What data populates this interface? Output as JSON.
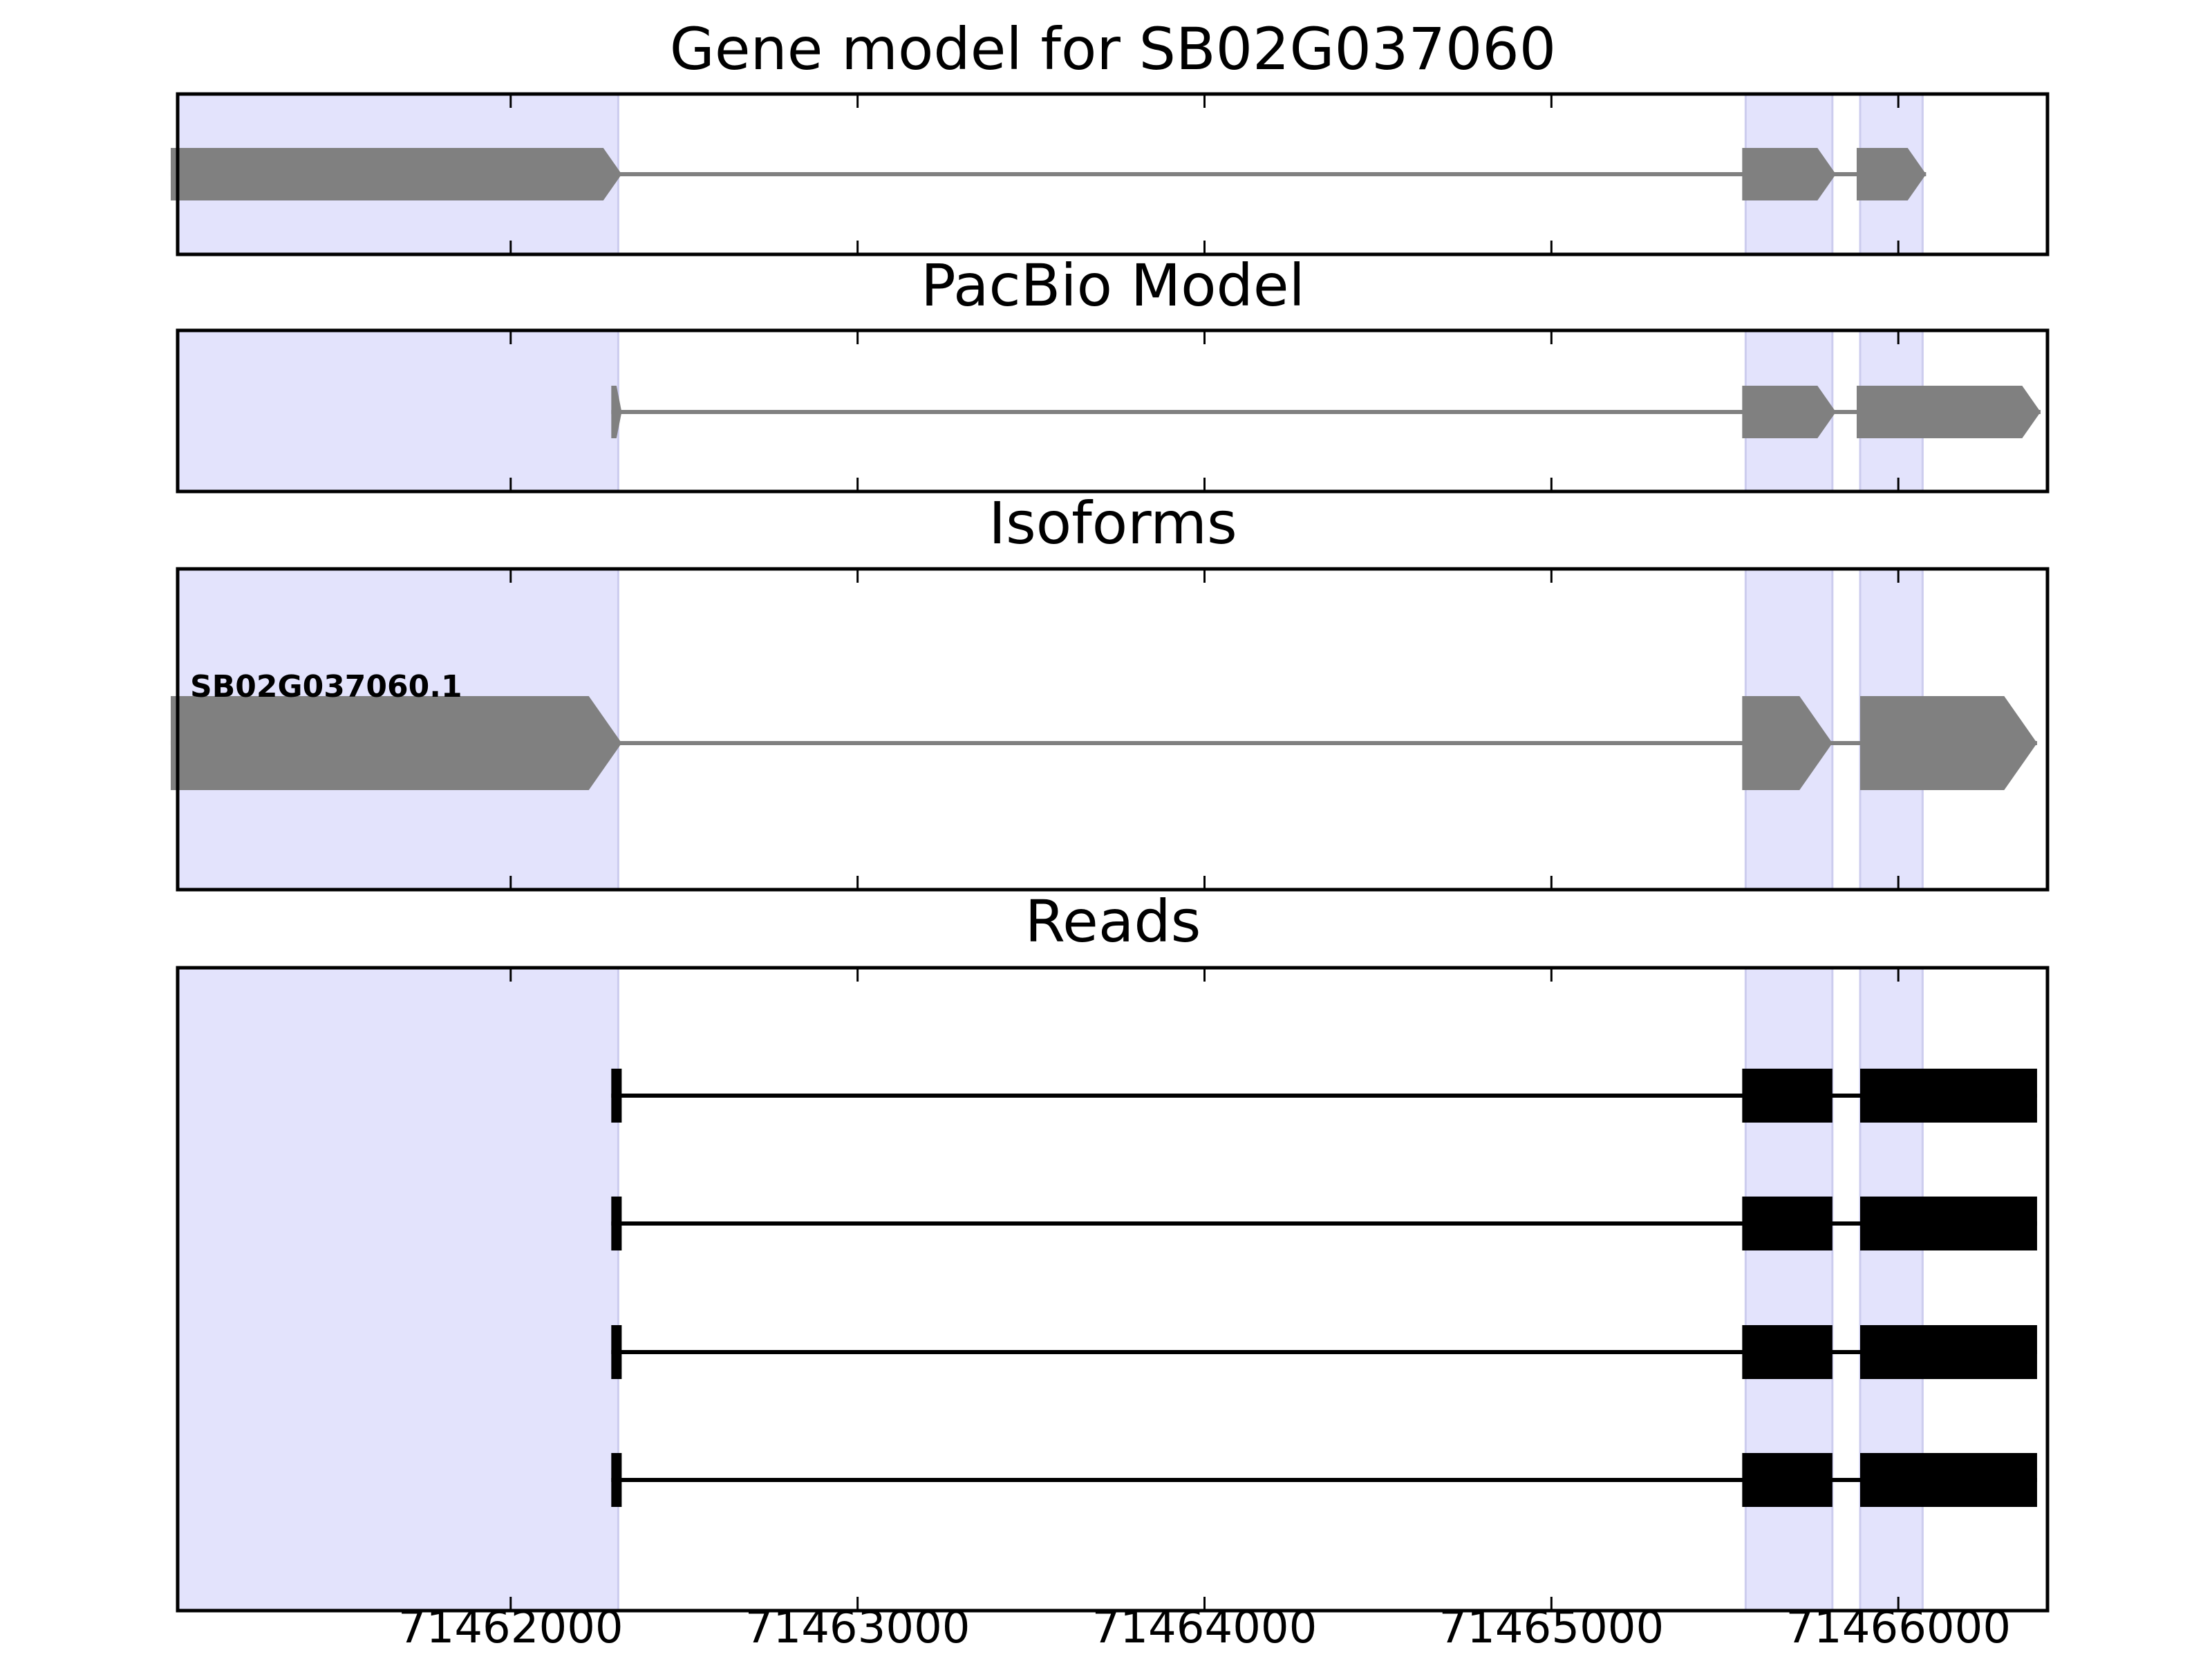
{
  "chart_data": {
    "type": "gene_structure",
    "xlim": [
      71461040,
      71466430
    ],
    "x_ticks": [
      71462000,
      71463000,
      71464000,
      71465000,
      71466000
    ],
    "tick_labels": [
      "71462000",
      "71463000",
      "71464000",
      "71465000",
      "71466000"
    ],
    "highlight_regions": [
      [
        71461040,
        71462310
      ],
      [
        71465560,
        71465810
      ],
      [
        71465890,
        71466070
      ]
    ],
    "colors": {
      "highlight": "#e3e3fc",
      "highlight_edge": "#ccccee",
      "model": "#808080",
      "read": "#000000"
    },
    "panels": [
      {
        "title": "Gene model for SB02G037060",
        "kind": "model",
        "tracks": [
          {
            "label": "",
            "exons": [
              [
                71461020,
                71462320
              ],
              [
                71465550,
                71465820
              ],
              [
                71465880,
                71466080
              ]
            ],
            "strand": "+"
          }
        ]
      },
      {
        "title": "PacBio Model",
        "kind": "model",
        "tracks": [
          {
            "label": "",
            "exons": [
              [
                71462290,
                71462320
              ],
              [
                71465550,
                71465820
              ],
              [
                71465880,
                71466410
              ]
            ],
            "strand": "+"
          }
        ]
      },
      {
        "title": "Isoforms",
        "kind": "model",
        "tracks": [
          {
            "label": "SB02G037060.1",
            "exons": [
              [
                71461020,
                71462320
              ],
              [
                71465550,
                71465810
              ],
              [
                71465890,
                71466400
              ]
            ],
            "strand": "+"
          }
        ]
      },
      {
        "title": "Reads",
        "kind": "reads",
        "tracks": [
          {
            "exons": [
              [
                71462290,
                71462320
              ],
              [
                71465550,
                71465810
              ],
              [
                71465890,
                71466400
              ]
            ]
          },
          {
            "exons": [
              [
                71462290,
                71462320
              ],
              [
                71465550,
                71465810
              ],
              [
                71465890,
                71466400
              ]
            ]
          },
          {
            "exons": [
              [
                71462290,
                71462320
              ],
              [
                71465550,
                71465810
              ],
              [
                71465890,
                71466400
              ]
            ]
          },
          {
            "exons": [
              [
                71462290,
                71462320
              ],
              [
                71465550,
                71465810
              ],
              [
                71465890,
                71466400
              ]
            ]
          }
        ]
      }
    ]
  }
}
